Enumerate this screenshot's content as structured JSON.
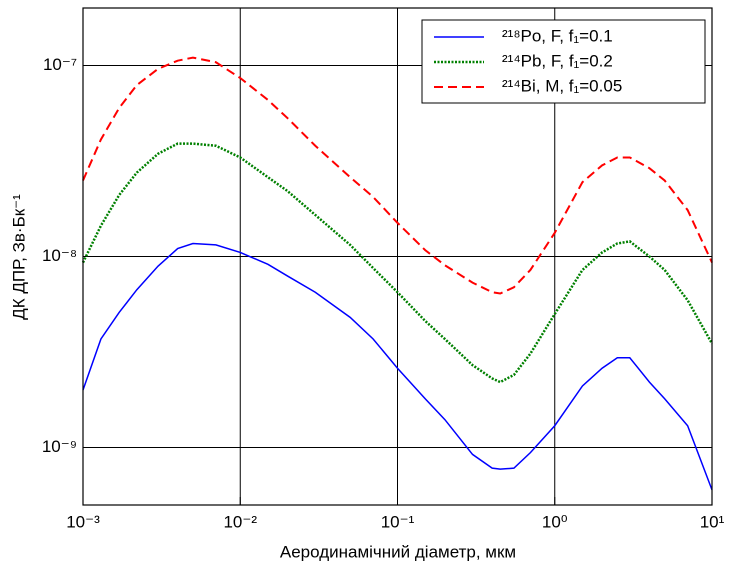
{
  "chart_data": {
    "type": "line",
    "xlabel": "Аеродинамічний діаметр, мкм",
    "ylabel": "ДК ДПР, Зв·Бк⁻¹",
    "xscale": "log",
    "yscale": "log",
    "xlim": [
      0.001,
      10
    ],
    "ylim": [
      5e-10,
      2e-07
    ],
    "xticks": [
      {
        "value": 0.001,
        "label": "10⁻³"
      },
      {
        "value": 0.01,
        "label": "10⁻²"
      },
      {
        "value": 0.1,
        "label": "10⁻¹"
      },
      {
        "value": 1,
        "label": "10⁰"
      },
      {
        "value": 10,
        "label": "10¹"
      }
    ],
    "yticks": [
      {
        "value": 1e-09,
        "label": "10⁻⁹"
      },
      {
        "value": 1e-08,
        "label": "10⁻⁸"
      },
      {
        "value": 1e-07,
        "label": "10⁻⁷"
      }
    ],
    "grid": true,
    "legend": "upper right",
    "x": [
      0.001,
      0.0013,
      0.0017,
      0.0022,
      0.003,
      0.004,
      0.005,
      0.007,
      0.01,
      0.015,
      0.02,
      0.03,
      0.05,
      0.07,
      0.1,
      0.15,
      0.2,
      0.3,
      0.4,
      0.45,
      0.55,
      0.7,
      1,
      1.5,
      2,
      2.5,
      3,
      4,
      5,
      7,
      10
    ],
    "series": [
      {
        "name": "²¹⁸Po, F, f₁=0.1",
        "color": "#0000ff",
        "linestyle": "solid",
        "values": [
          2e-09,
          3.7e-09,
          5.1e-09,
          6.7e-09,
          8.9e-09,
          1.1e-08,
          1.17e-08,
          1.15e-08,
          1.05e-08,
          9.1e-09,
          7.9e-09,
          6.5e-09,
          4.8e-09,
          3.7e-09,
          2.6e-09,
          1.8e-09,
          1.4e-09,
          9.2e-10,
          7.8e-10,
          7.7e-10,
          7.8e-10,
          9.4e-10,
          1.3e-09,
          2.1e-09,
          2.6e-09,
          2.95e-09,
          2.95e-09,
          2.2e-09,
          1.8e-09,
          1.3e-09,
          6e-10
        ]
      },
      {
        "name": "²¹⁴Pb, F, f₁=0.2",
        "color": "#008000",
        "linestyle": "dotted",
        "values": [
          9.3e-09,
          1.45e-08,
          2.1e-08,
          2.75e-08,
          3.45e-08,
          3.9e-08,
          3.9e-08,
          3.8e-08,
          3.3e-08,
          2.6e-08,
          2.2e-08,
          1.65e-08,
          1.15e-08,
          8.7e-09,
          6.5e-09,
          4.6e-09,
          3.7e-09,
          2.7e-09,
          2.3e-09,
          2.2e-09,
          2.4e-09,
          3.1e-09,
          5e-09,
          8.5e-09,
          1.05e-08,
          1.17e-08,
          1.2e-08,
          1e-08,
          8.5e-09,
          5.9e-09,
          3.5e-09
        ]
      },
      {
        "name": "²¹⁴Bi, M, f₁=0.05",
        "color": "#ff0000",
        "linestyle": "dashed",
        "values": [
          2.5e-08,
          4.1e-08,
          6e-08,
          7.9e-08,
          9.6e-08,
          1.06e-07,
          1.1e-07,
          1.04e-07,
          8.6e-08,
          6.6e-08,
          5.3e-08,
          3.8e-08,
          2.6e-08,
          2.05e-08,
          1.5e-08,
          1.08e-08,
          9e-09,
          7.3e-09,
          6.5e-09,
          6.4e-09,
          6.9e-09,
          8.5e-09,
          1.33e-08,
          2.45e-08,
          3e-08,
          3.3e-08,
          3.3e-08,
          2.9e-08,
          2.5e-08,
          1.75e-08,
          9.3e-09
        ]
      }
    ]
  }
}
